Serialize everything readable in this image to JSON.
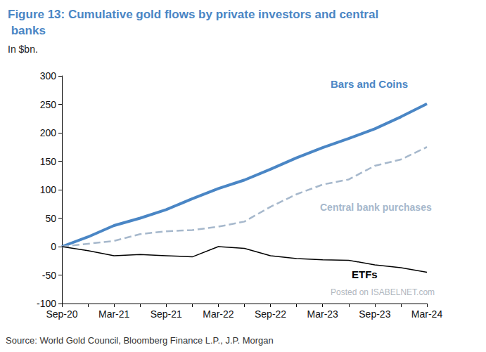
{
  "chart_data": {
    "type": "line",
    "title": "Figure 13: Cumulative gold flows by private investors and central banks",
    "subtitle": "In $bn.",
    "source": "Source: World Gold Council, Bloomberg Finance L.P., J.P. Morgan",
    "watermark": "Posted on ISABELNET.com",
    "categories": [
      "Sep-20",
      null,
      "Mar-21",
      null,
      "Sep-21",
      null,
      "Mar-22",
      null,
      "Sep-22",
      null,
      "Mar-23",
      null,
      "Sep-23",
      null,
      "Mar-24"
    ],
    "series": [
      {
        "name": "Bars and Coins",
        "color": "#4a86c5",
        "line_style": "solid",
        "values": [
          0,
          17,
          37,
          50,
          65,
          84,
          102,
          117,
          136,
          156,
          174,
          190,
          207,
          228,
          251
        ]
      },
      {
        "name": "Central bank purchases",
        "color": "#a6b8cc",
        "line_style": "dashed",
        "values": [
          0,
          5,
          10,
          22,
          27,
          29,
          35,
          44,
          70,
          92,
          109,
          118,
          142,
          153,
          175
        ]
      },
      {
        "name": "ETFs",
        "color": "#000000",
        "line_style": "solid",
        "values": [
          0,
          -7,
          -16,
          -14,
          -16,
          -18,
          0,
          -3,
          -16,
          -21,
          -23,
          -24,
          -32,
          -37,
          -45
        ]
      }
    ],
    "ylim": [
      -100,
      300
    ],
    "yticks": [
      -100,
      -50,
      0,
      50,
      100,
      150,
      200,
      250,
      300
    ],
    "grid": false
  }
}
